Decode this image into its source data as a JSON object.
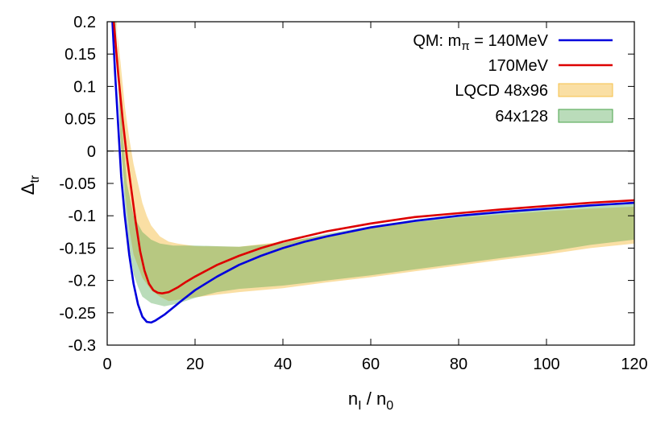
{
  "chart_data": {
    "type": "line",
    "title": "",
    "xlabel": {
      "main": "n",
      "sub1": "I",
      "sep": " / n",
      "sub2": "0"
    },
    "ylabel": {
      "main": "Δ",
      "sub": "tr"
    },
    "xlim": [
      0,
      120
    ],
    "ylim": [
      -0.3,
      0.2
    ],
    "xticks": [
      "0",
      "20",
      "40",
      "60",
      "80",
      "100",
      "120"
    ],
    "yticks": [
      "-0.3",
      "-0.25",
      "-0.2",
      "-0.15",
      "-0.1",
      "-0.05",
      "0",
      "0.05",
      "0.1",
      "0.15",
      "0.2"
    ],
    "grid": false,
    "legend_position": "top-right",
    "legend": [
      {
        "key": "qm140",
        "label": "QM: m",
        "sub": "π",
        "suffix": " = 140MeV",
        "kind": "line",
        "color": "#0000dd"
      },
      {
        "key": "qm170",
        "label": "170MeV",
        "kind": "line",
        "color": "#dd0000"
      },
      {
        "key": "lqcd48",
        "label": "LQCD 48x96",
        "kind": "band",
        "color": "#f5c04a"
      },
      {
        "key": "lqcd64",
        "label": "64x128",
        "kind": "band",
        "color": "#4aa34a"
      }
    ],
    "series": [
      {
        "key": "qm140",
        "color": "#0000dd",
        "points": [
          [
            1.2,
            0.2
          ],
          [
            1.8,
            0.12
          ],
          [
            2.5,
            0.04
          ],
          [
            3.2,
            -0.04
          ],
          [
            4,
            -0.1
          ],
          [
            5,
            -0.16
          ],
          [
            6,
            -0.205
          ],
          [
            7,
            -0.237
          ],
          [
            8,
            -0.256
          ],
          [
            9,
            -0.264
          ],
          [
            10,
            -0.265
          ],
          [
            11,
            -0.262
          ],
          [
            13,
            -0.253
          ],
          [
            15,
            -0.242
          ],
          [
            17,
            -0.231
          ],
          [
            20,
            -0.215
          ],
          [
            25,
            -0.194
          ],
          [
            30,
            -0.176
          ],
          [
            35,
            -0.162
          ],
          [
            40,
            -0.15
          ],
          [
            45,
            -0.14
          ],
          [
            50,
            -0.132
          ],
          [
            60,
            -0.118
          ],
          [
            70,
            -0.108
          ],
          [
            80,
            -0.1
          ],
          [
            90,
            -0.094
          ],
          [
            100,
            -0.089
          ],
          [
            110,
            -0.084
          ],
          [
            120,
            -0.08
          ]
        ]
      },
      {
        "key": "qm170",
        "color": "#dd0000",
        "points": [
          [
            1.5,
            0.2
          ],
          [
            2.5,
            0.12
          ],
          [
            3.5,
            0.05
          ],
          [
            4.5,
            -0.01
          ],
          [
            5.5,
            -0.06
          ],
          [
            6.5,
            -0.11
          ],
          [
            7.5,
            -0.155
          ],
          [
            8.5,
            -0.185
          ],
          [
            9.5,
            -0.205
          ],
          [
            10.5,
            -0.215
          ],
          [
            11.5,
            -0.219
          ],
          [
            12.5,
            -0.22
          ],
          [
            14,
            -0.218
          ],
          [
            16,
            -0.211
          ],
          [
            18,
            -0.202
          ],
          [
            20,
            -0.194
          ],
          [
            25,
            -0.176
          ],
          [
            30,
            -0.162
          ],
          [
            35,
            -0.15
          ],
          [
            40,
            -0.14
          ],
          [
            50,
            -0.124
          ],
          [
            60,
            -0.112
          ],
          [
            70,
            -0.102
          ],
          [
            80,
            -0.096
          ],
          [
            90,
            -0.09
          ],
          [
            100,
            -0.085
          ],
          [
            110,
            -0.08
          ],
          [
            120,
            -0.076
          ]
        ]
      }
    ],
    "bands": [
      {
        "key": "lqcd48",
        "color": "#f5c04a",
        "opacity": 0.5,
        "upper": [
          [
            2,
            0.2
          ],
          [
            3,
            0.14
          ],
          [
            4,
            0.07
          ],
          [
            5,
            0.02
          ],
          [
            6,
            -0.02
          ],
          [
            7,
            -0.05
          ],
          [
            8,
            -0.08
          ],
          [
            9,
            -0.1
          ],
          [
            10,
            -0.115
          ],
          [
            12,
            -0.132
          ],
          [
            14,
            -0.14
          ],
          [
            16,
            -0.143
          ],
          [
            20,
            -0.147
          ],
          [
            30,
            -0.148
          ],
          [
            40,
            -0.14
          ],
          [
            50,
            -0.13
          ],
          [
            60,
            -0.118
          ],
          [
            70,
            -0.11
          ],
          [
            80,
            -0.103
          ],
          [
            90,
            -0.098
          ],
          [
            100,
            -0.093
          ],
          [
            110,
            -0.089
          ],
          [
            120,
            -0.086
          ]
        ],
        "lower": [
          [
            120,
            -0.143
          ],
          [
            110,
            -0.15
          ],
          [
            100,
            -0.16
          ],
          [
            90,
            -0.168
          ],
          [
            80,
            -0.177
          ],
          [
            70,
            -0.186
          ],
          [
            60,
            -0.195
          ],
          [
            50,
            -0.203
          ],
          [
            40,
            -0.212
          ],
          [
            30,
            -0.218
          ],
          [
            25,
            -0.222
          ],
          [
            20,
            -0.226
          ],
          [
            16,
            -0.23
          ],
          [
            14,
            -0.232
          ],
          [
            12,
            -0.225
          ],
          [
            10,
            -0.215
          ],
          [
            8,
            -0.196
          ],
          [
            6,
            -0.16
          ],
          [
            5,
            -0.12
          ],
          [
            4,
            -0.06
          ],
          [
            3,
            0.02
          ],
          [
            2.2,
            0.2
          ]
        ]
      },
      {
        "key": "lqcd64",
        "color": "#4aa34a",
        "opacity": 0.38,
        "upper": [
          [
            1.5,
            0.2
          ],
          [
            2.5,
            0.12
          ],
          [
            3.5,
            0.03
          ],
          [
            4.5,
            -0.05
          ],
          [
            6,
            -0.1
          ],
          [
            8,
            -0.125
          ],
          [
            10,
            -0.137
          ],
          [
            12,
            -0.143
          ],
          [
            15,
            -0.146
          ],
          [
            20,
            -0.146
          ],
          [
            25,
            -0.147
          ],
          [
            30,
            -0.148
          ],
          [
            40,
            -0.142
          ],
          [
            50,
            -0.128
          ],
          [
            60,
            -0.116
          ],
          [
            70,
            -0.106
          ],
          [
            80,
            -0.099
          ],
          [
            90,
            -0.093
          ],
          [
            100,
            -0.088
          ],
          [
            110,
            -0.083
          ],
          [
            120,
            -0.079
          ]
        ],
        "lower": [
          [
            120,
            -0.137
          ],
          [
            110,
            -0.145
          ],
          [
            100,
            -0.156
          ],
          [
            90,
            -0.165
          ],
          [
            80,
            -0.174
          ],
          [
            70,
            -0.183
          ],
          [
            60,
            -0.192
          ],
          [
            50,
            -0.2
          ],
          [
            40,
            -0.208
          ],
          [
            30,
            -0.213
          ],
          [
            25,
            -0.218
          ],
          [
            20,
            -0.227
          ],
          [
            16,
            -0.236
          ],
          [
            13,
            -0.24
          ],
          [
            10,
            -0.235
          ],
          [
            8,
            -0.225
          ],
          [
            7,
            -0.21
          ],
          [
            6,
            -0.19
          ],
          [
            5,
            -0.15
          ],
          [
            4,
            -0.08
          ],
          [
            3,
            0.02
          ],
          [
            2,
            0.2
          ]
        ]
      }
    ]
  }
}
